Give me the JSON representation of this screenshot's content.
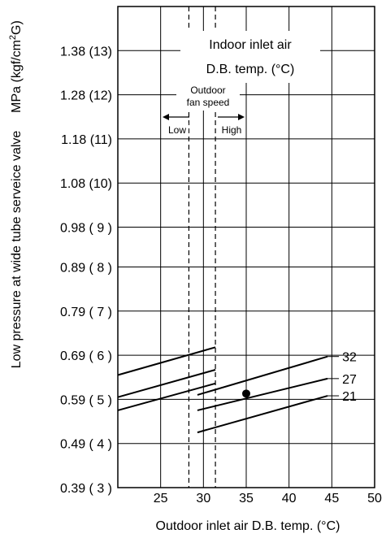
{
  "chart_data": {
    "type": "line",
    "title": "",
    "xlabel": "Outdoor inlet air D.B. temp. (°C)",
    "ylabel_lines": [
      "Low pressure at wide tube serveice valve",
      "MPa (kgf/cm²G)"
    ],
    "xlim": [
      20,
      50
    ],
    "ylim": [
      0.39,
      1.48
    ],
    "x_ticks": [
      25,
      30,
      35,
      40,
      45,
      50
    ],
    "y_ticks": [
      {
        "value": 0.39,
        "label": "0.39 ( 3 )"
      },
      {
        "value": 0.49,
        "label": "0.49 ( 4 )"
      },
      {
        "value": 0.59,
        "label": "0.59 ( 5 )"
      },
      {
        "value": 0.69,
        "label": "0.69 ( 6 )"
      },
      {
        "value": 0.79,
        "label": "0.79 ( 7 )"
      },
      {
        "value": 0.89,
        "label": "0.89 ( 8 )"
      },
      {
        "value": 0.98,
        "label": "0.98 ( 9 )"
      },
      {
        "value": 1.08,
        "label": "1.08 (10)"
      },
      {
        "value": 1.18,
        "label": "1.18 (11)"
      },
      {
        "value": 1.28,
        "label": "1.28 (12)"
      },
      {
        "value": 1.38,
        "label": "1.38 (13)"
      }
    ],
    "grid": true,
    "series": [
      {
        "name": "32",
        "segments": [
          [
            [
              20,
              0.645
            ],
            [
              31.4,
              0.708
            ]
          ],
          [
            [
              29.3,
              0.6
            ],
            [
              44.5,
              0.687
            ]
          ]
        ]
      },
      {
        "name": "27",
        "segments": [
          [
            [
              20,
              0.595
            ],
            [
              31.4,
              0.657
            ]
          ],
          [
            [
              29.3,
              0.565
            ],
            [
              44.5,
              0.637
            ]
          ]
        ]
      },
      {
        "name": "21",
        "segments": [
          [
            [
              20,
              0.565
            ],
            [
              31.4,
              0.626
            ]
          ],
          [
            [
              29.3,
              0.515
            ],
            [
              44.5,
              0.598
            ]
          ]
        ]
      }
    ],
    "point": {
      "x": 35,
      "y": 0.603
    },
    "vlines": [
      28.3,
      31.4
    ],
    "annotations": {
      "indoor_line1": "Indoor inlet air",
      "indoor_line2": "D.B. temp. (°C)",
      "fan_line1": "Outdoor",
      "fan_line2": "fan speed",
      "low": "Low",
      "high": "High"
    }
  }
}
